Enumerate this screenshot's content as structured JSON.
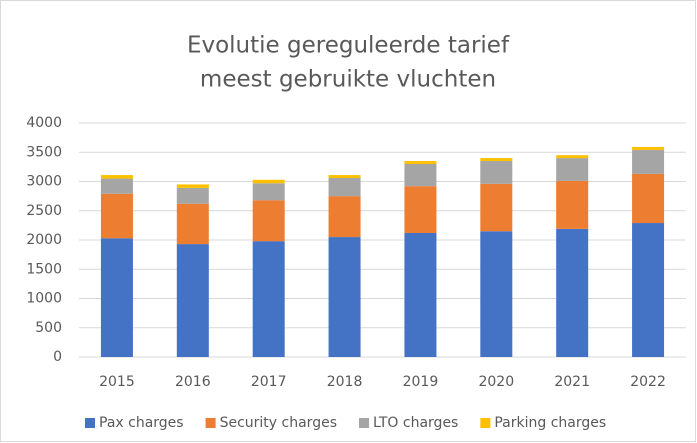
{
  "chart_data": {
    "type": "stacked_bar",
    "title": [
      "Evolutie gereguleerde tarief",
      "meest gebruikte vluchten"
    ],
    "categories": [
      "2015",
      "2016",
      "2017",
      "2018",
      "2019",
      "2020",
      "2021",
      "2022"
    ],
    "series": [
      {
        "name": "Pax charges",
        "color": "#4472c4",
        "values": [
          2030,
          1930,
          1980,
          2050,
          2120,
          2150,
          2190,
          2290
        ]
      },
      {
        "name": "Security charges",
        "color": "#ed7d31",
        "values": [
          760,
          690,
          700,
          700,
          800,
          810,
          820,
          840
        ]
      },
      {
        "name": "LTO charges",
        "color": "#a5a5a5",
        "values": [
          260,
          270,
          290,
          310,
          380,
          390,
          390,
          410
        ]
      },
      {
        "name": "Parking charges",
        "color": "#ffc000",
        "values": [
          60,
          60,
          60,
          50,
          50,
          50,
          50,
          50
        ]
      }
    ],
    "ylim": [
      0,
      4000
    ],
    "yticks": [
      0,
      500,
      1000,
      1500,
      2000,
      2500,
      3000,
      3500,
      4000
    ],
    "grid": true,
    "legend": "bottom"
  }
}
